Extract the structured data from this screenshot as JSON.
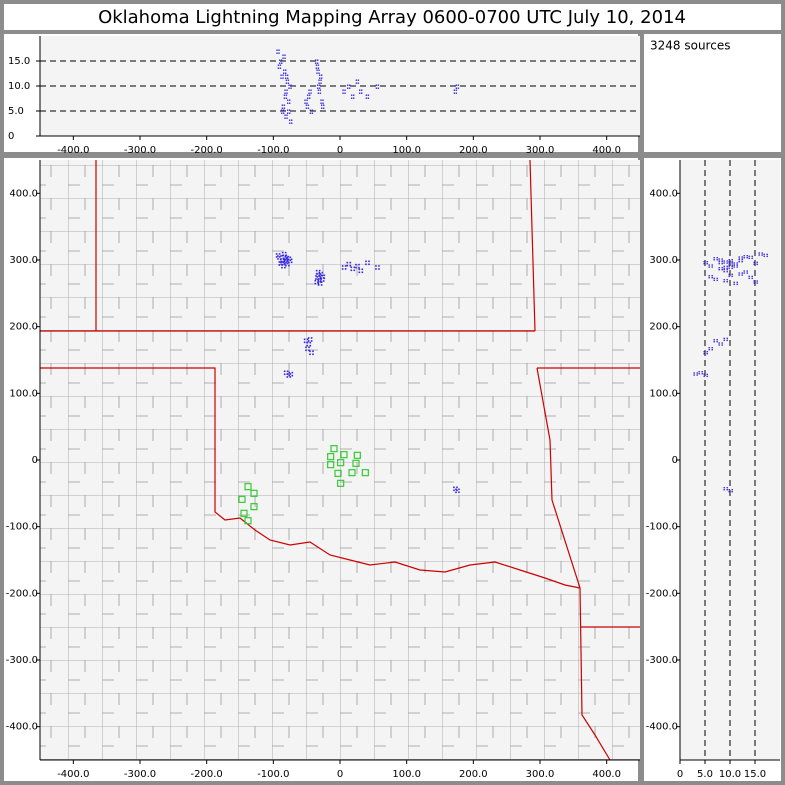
{
  "chart_data": {
    "type": "scatter",
    "title": "Oklahoma Lightning Mapping Array   0600-0700 UTC  July 10, 2014",
    "annotation": "3248 sources",
    "xlim": [
      -450,
      450
    ],
    "ylim": [
      -450,
      450
    ],
    "zlim": [
      0,
      20
    ],
    "xticks": [
      {
        "value": -400,
        "label": "-400.0"
      },
      {
        "value": -300,
        "label": "-300.0"
      },
      {
        "value": -200,
        "label": "-200.0"
      },
      {
        "value": -100,
        "label": "-100.0"
      },
      0,
      {
        "value": 100,
        "label": "100.0"
      },
      {
        "value": 200,
        "label": "200.0"
      },
      {
        "value": 300,
        "label": "300.0"
      },
      {
        "value": 400,
        "label": "400.0"
      }
    ],
    "yticks": [
      {
        "value": 400,
        "label": "400.0"
      },
      {
        "value": 300,
        "label": "300.0"
      },
      {
        "value": 200,
        "label": "200.0"
      },
      {
        "value": 100,
        "label": "100.0"
      },
      0,
      {
        "value": -100,
        "label": "-100.0"
      },
      {
        "value": -200,
        "label": "-200.0"
      },
      {
        "value": -300,
        "label": "-300.0"
      },
      {
        "value": -400,
        "label": "-400.0"
      }
    ],
    "zticks": [
      0,
      {
        "value": 5,
        "label": "5.0"
      },
      {
        "value": 10,
        "label": "10.0"
      },
      {
        "value": 15,
        "label": "15.0"
      }
    ],
    "grid": "dashed",
    "series": [
      {
        "color": "#3526e0",
        "x": [
          -92,
          -88,
          -85,
          -82,
          -80,
          -78,
          -90,
          -86,
          -84,
          -94,
          -76,
          -83,
          -87,
          -81,
          -35,
          -32,
          -30,
          -28,
          -36,
          -33,
          -27,
          -31,
          -34,
          5,
          12,
          18,
          25,
          30,
          40,
          55,
          -52,
          -48,
          -50,
          -46,
          -44,
          -82,
          -78,
          -75,
          175,
          172
        ],
        "y": [
          305,
          300,
          310,
          298,
          295,
          303,
          296,
          292,
          306,
          308,
          300,
          301,
          297,
          304,
          275,
          270,
          280,
          272,
          268,
          278,
          276,
          266,
          283,
          290,
          295,
          288,
          292,
          285,
          297,
          290,
          180,
          175,
          168,
          182,
          162,
          132,
          128,
          130,
          -45,
          -42
        ],
        "z": [
          14,
          12,
          16,
          9,
          11,
          7,
          15,
          6,
          13,
          17,
          10,
          8,
          5,
          12,
          14,
          9,
          12,
          7,
          15,
          10,
          6,
          11,
          13,
          9,
          10,
          8,
          11,
          9,
          8,
          10,
          7,
          8,
          6,
          9,
          5,
          4,
          5,
          3,
          10,
          9
        ]
      },
      {
        "color": "#33cc33",
        "x": [
          -9,
          -14,
          6,
          26,
          -14,
          1,
          24,
          38,
          18,
          -3,
          1,
          -138,
          -129,
          -147,
          -129,
          -144,
          -138
        ],
        "y": [
          17,
          5,
          8,
          7,
          -7,
          -4,
          -5,
          -19,
          -19,
          -20,
          -35,
          -40,
          -50,
          -59,
          -70,
          -80,
          -91
        ]
      }
    ]
  }
}
